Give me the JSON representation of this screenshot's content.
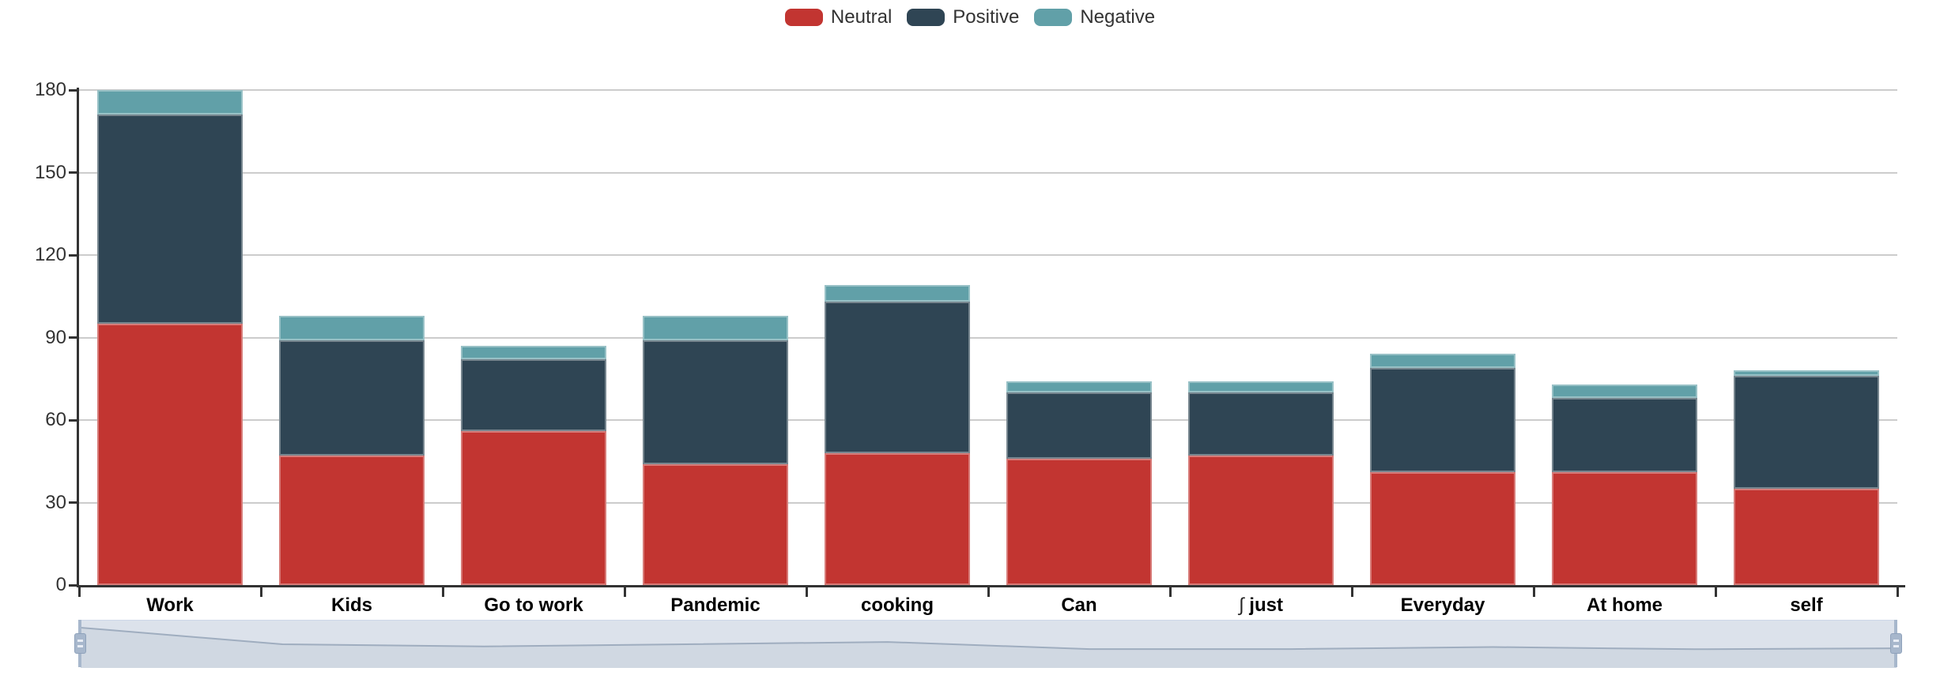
{
  "legend": {
    "items": [
      {
        "label": "Neutral",
        "color": "#c23531"
      },
      {
        "label": "Positive",
        "color": "#2f4554"
      },
      {
        "label": "Negative",
        "color": "#61a0a8"
      }
    ]
  },
  "chart_data": {
    "type": "bar",
    "stacked": true,
    "title": "",
    "xlabel": "",
    "ylabel": "",
    "categories": [
      "Work",
      "Kids",
      "Go to work",
      "Pandemic",
      "cooking",
      "Can",
      "∫ just",
      "Everyday",
      "At home",
      "self"
    ],
    "series": [
      {
        "name": "Neutral",
        "color": "#c23531",
        "values": [
          95,
          47,
          56,
          44,
          48,
          46,
          47,
          41,
          41,
          35
        ]
      },
      {
        "name": "Positive",
        "color": "#2f4554",
        "values": [
          76,
          42,
          26,
          45,
          55,
          24,
          23,
          38,
          27,
          41
        ]
      },
      {
        "name": "Negative",
        "color": "#61a0a8",
        "values": [
          9,
          9,
          5,
          9,
          6,
          4,
          4,
          5,
          5,
          2
        ]
      }
    ],
    "stack_totals": [
      180,
      98,
      87,
      98,
      109,
      74,
      74,
      84,
      73,
      78
    ],
    "ylim": [
      0,
      180
    ],
    "y_tick_step": 30,
    "y_tick_labels": [
      "0",
      "30",
      "60",
      "90",
      "120",
      "150",
      "180"
    ],
    "grid": true,
    "legend_position": "top",
    "datazoom": {
      "range_start_pct": 0,
      "range_end_pct": 100
    }
  },
  "colors": {
    "axis": "#333333",
    "gridline": "#cccccc",
    "slider_fill": "#dce2eb",
    "slider_shadow_area": "#d0d8e2",
    "slider_shadow_line": "#9fadbf",
    "slider_handle": "#a7b7cc"
  }
}
